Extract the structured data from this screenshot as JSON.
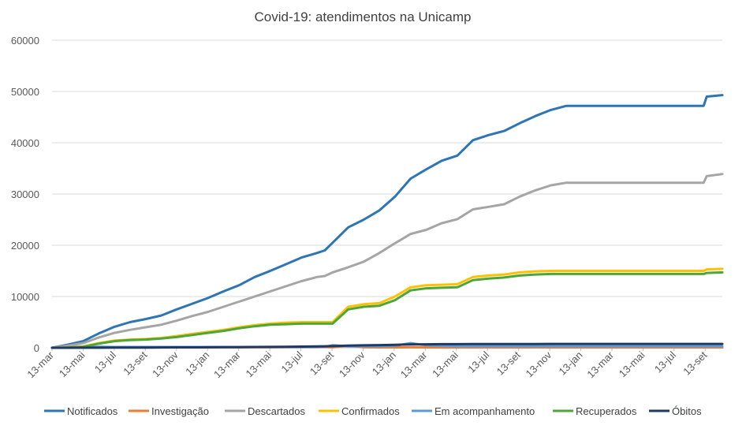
{
  "chart_data": {
    "type": "line",
    "title": "Covid-19: atendimentos  na Unicamp",
    "xlabel": "",
    "ylabel": "",
    "ylim": [
      0,
      60000
    ],
    "yticks": [
      "0",
      "10000",
      "20000",
      "30000",
      "40000",
      "50000",
      "60000"
    ],
    "grid": "horizontal",
    "legend_position": "bottom",
    "x_tick_labels": [
      "13-mar",
      "13-mai",
      "13-jul",
      "13-set",
      "13-nov",
      "13-jan",
      "13-mar",
      "13-mai",
      "13-jul",
      "13-set",
      "13-nov",
      "13-jan",
      "13-mar",
      "13-mai",
      "13-jul",
      "13-set",
      "13-nov",
      "13-jan",
      "13-mar",
      "13-mai",
      "13-jul",
      "13-set"
    ],
    "x": [
      0,
      1,
      2,
      3,
      4,
      5,
      6,
      7,
      8,
      9,
      10,
      11,
      12,
      13,
      14,
      15,
      16,
      17,
      17.5,
      18,
      19,
      20,
      21,
      22,
      23,
      24,
      25,
      26,
      27,
      28,
      29,
      30,
      31,
      32,
      33,
      34,
      35,
      36,
      37,
      38,
      39,
      40,
      41,
      41.8,
      42,
      43
    ],
    "series": [
      {
        "name": "Notificados",
        "color": "#2E75B6",
        "values": [
          0,
          600,
          1300,
          2800,
          4100,
          5000,
          5600,
          6300,
          7500,
          8600,
          9700,
          11000,
          12200,
          13800,
          15000,
          16300,
          17600,
          18500,
          19000,
          20500,
          23500,
          25000,
          26800,
          29500,
          33000,
          34800,
          36500,
          37500,
          40500,
          41500,
          42300,
          43800,
          45200,
          46400,
          47200,
          47200,
          47200,
          47200,
          47200,
          47200,
          47200,
          47200,
          47200,
          47200,
          49000,
          49300
        ]
      },
      {
        "name": "Investigação",
        "color": "#ED7D31",
        "values": [
          0,
          30,
          40,
          50,
          60,
          60,
          60,
          70,
          70,
          80,
          80,
          90,
          90,
          100,
          100,
          110,
          110,
          120,
          150,
          100,
          400,
          100,
          60,
          80,
          100,
          80,
          60,
          60,
          60,
          60,
          60,
          60,
          80,
          60,
          60,
          60,
          60,
          60,
          60,
          60,
          60,
          60,
          60,
          60,
          60,
          60
        ]
      },
      {
        "name": "Descartados",
        "color": "#A5A5A5",
        "values": [
          0,
          400,
          900,
          2000,
          2900,
          3500,
          4000,
          4500,
          5300,
          6200,
          7000,
          8000,
          9000,
          10000,
          11000,
          12000,
          13000,
          13800,
          14000,
          14700,
          15700,
          16800,
          18500,
          20400,
          22200,
          23000,
          24300,
          25100,
          27000,
          27500,
          28000,
          29500,
          30700,
          31700,
          32200,
          32200,
          32200,
          32200,
          32200,
          32200,
          32200,
          32200,
          32200,
          32200,
          33500,
          33900
        ]
      },
      {
        "name": "Confirmados",
        "color": "#FFC000",
        "values": [
          0,
          100,
          250,
          900,
          1400,
          1600,
          1700,
          1900,
          2300,
          2700,
          3100,
          3500,
          4000,
          4400,
          4700,
          4900,
          5000,
          5000,
          5000,
          5000,
          8000,
          8500,
          8700,
          10000,
          11800,
          12200,
          12300,
          12400,
          13800,
          14100,
          14300,
          14700,
          14900,
          15000,
          15000,
          15000,
          15000,
          15000,
          15000,
          15000,
          15000,
          15000,
          15000,
          15000,
          15300,
          15400
        ]
      },
      {
        "name": "Em acompanhamento",
        "color": "#5B9BD5",
        "values": [
          0,
          50,
          100,
          200,
          150,
          150,
          150,
          150,
          150,
          150,
          150,
          150,
          150,
          150,
          150,
          150,
          150,
          150,
          200,
          500,
          300,
          300,
          300,
          400,
          900,
          500,
          400,
          300,
          300,
          300,
          300,
          300,
          300,
          300,
          300,
          300,
          300,
          300,
          300,
          300,
          300,
          300,
          300,
          300,
          300,
          300
        ]
      },
      {
        "name": "Recuperados",
        "color": "#4CA63A",
        "values": [
          0,
          50,
          200,
          800,
          1300,
          1500,
          1600,
          1800,
          2100,
          2500,
          2900,
          3300,
          3800,
          4200,
          4500,
          4600,
          4700,
          4700,
          4700,
          4700,
          7500,
          8000,
          8200,
          9300,
          11200,
          11600,
          11700,
          11800,
          13200,
          13500,
          13700,
          14100,
          14300,
          14400,
          14400,
          14400,
          14400,
          14400,
          14400,
          14400,
          14400,
          14400,
          14400,
          14400,
          14600,
          14700
        ]
      },
      {
        "name": "Óbitos",
        "color": "#1F3864",
        "values": [
          0,
          0,
          10,
          20,
          30,
          40,
          50,
          60,
          70,
          80,
          90,
          110,
          130,
          150,
          170,
          200,
          230,
          270,
          300,
          330,
          420,
          470,
          520,
          580,
          650,
          680,
          700,
          710,
          720,
          730,
          735,
          740,
          745,
          750,
          750,
          750,
          750,
          750,
          750,
          750,
          750,
          750,
          750,
          750,
          760,
          760
        ]
      }
    ]
  }
}
